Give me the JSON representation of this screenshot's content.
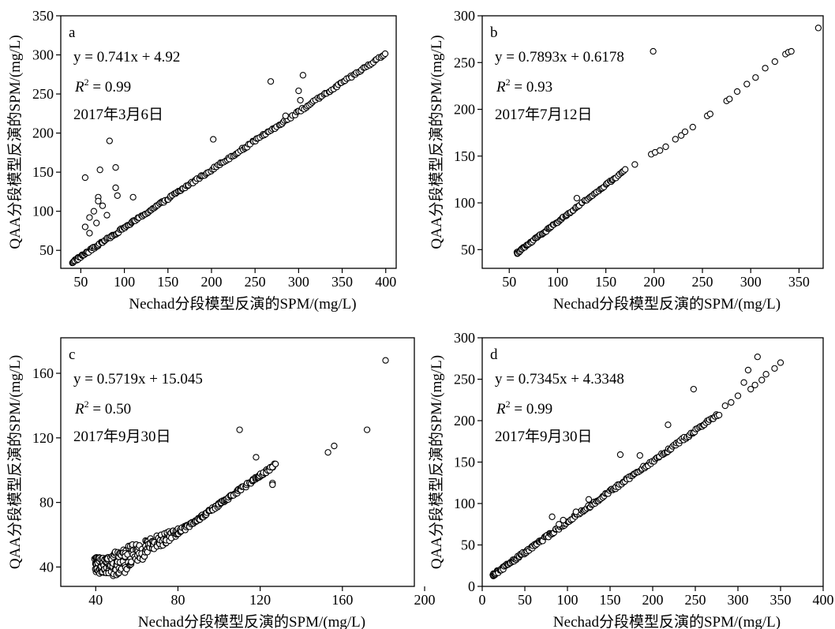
{
  "chart_data": [
    {
      "type": "scatter",
      "panel_label": "a",
      "equation": "y = 0.741x + 4.92",
      "r2": "0.99",
      "date": "2017年3月6日",
      "xlabel": "Nechad分段模型反演的SPM/(mg/L)",
      "ylabel": "QAA分段模型反演的SPM/(mg/L)",
      "xlim": [
        27,
        412
      ],
      "ylim": [
        27,
        350
      ],
      "xticks": [
        50,
        100,
        150,
        200,
        250,
        300,
        350,
        400
      ],
      "yticks": [
        50,
        100,
        150,
        200,
        250,
        300,
        350
      ],
      "fit": {
        "slope": 0.741,
        "intercept": 4.92
      },
      "dense_points": {
        "x_start": 40,
        "x_end": 400,
        "count": 230,
        "spread": 1.5
      },
      "outliers": [
        {
          "x": 55,
          "y": 143
        },
        {
          "x": 72,
          "y": 153
        },
        {
          "x": 83,
          "y": 190
        },
        {
          "x": 90,
          "y": 156
        },
        {
          "x": 90,
          "y": 130
        },
        {
          "x": 92,
          "y": 120
        },
        {
          "x": 70,
          "y": 118
        },
        {
          "x": 70,
          "y": 113
        },
        {
          "x": 75,
          "y": 107
        },
        {
          "x": 65,
          "y": 100
        },
        {
          "x": 60,
          "y": 92
        },
        {
          "x": 80,
          "y": 95
        },
        {
          "x": 110,
          "y": 118
        },
        {
          "x": 55,
          "y": 80
        },
        {
          "x": 60,
          "y": 72
        },
        {
          "x": 68,
          "y": 85
        },
        {
          "x": 202,
          "y": 192
        },
        {
          "x": 268,
          "y": 266
        },
        {
          "x": 305,
          "y": 274
        },
        {
          "x": 300,
          "y": 254
        },
        {
          "x": 302,
          "y": 242
        },
        {
          "x": 285,
          "y": 222
        }
      ]
    },
    {
      "type": "scatter",
      "panel_label": "b",
      "equation": "y = 0.7893x + 0.6178",
      "r2": "0.93",
      "date": "2017年7月12日",
      "xlabel": "Nechad分段模型反演的SPM/(mg/L)",
      "ylabel": "QAA分段模型反演的SPM/(mg/L)",
      "xlim": [
        22,
        375
      ],
      "ylim": [
        30,
        300
      ],
      "xticks": [
        50,
        100,
        150,
        200,
        250,
        300,
        350
      ],
      "yticks": [
        50,
        100,
        150,
        200,
        250,
        300
      ],
      "fit": {
        "slope": 0.7893,
        "intercept": 0.6178
      },
      "dense_points": {
        "x_start": 58,
        "x_end": 170,
        "count": 95,
        "spread": 1.0
      },
      "outliers": [
        {
          "x": 120,
          "y": 105
        },
        {
          "x": 199,
          "y": 262
        },
        {
          "x": 370,
          "y": 287
        },
        {
          "x": 180,
          "y": 141
        },
        {
          "x": 197,
          "y": 152
        },
        {
          "x": 201,
          "y": 154
        },
        {
          "x": 206,
          "y": 156
        },
        {
          "x": 212,
          "y": 160
        },
        {
          "x": 222,
          "y": 168
        },
        {
          "x": 228,
          "y": 172
        },
        {
          "x": 232,
          "y": 176
        },
        {
          "x": 240,
          "y": 181
        },
        {
          "x": 255,
          "y": 193
        },
        {
          "x": 258,
          "y": 195
        },
        {
          "x": 275,
          "y": 209
        },
        {
          "x": 278,
          "y": 211
        },
        {
          "x": 286,
          "y": 219
        },
        {
          "x": 296,
          "y": 227
        },
        {
          "x": 305,
          "y": 234
        },
        {
          "x": 315,
          "y": 244
        },
        {
          "x": 325,
          "y": 251
        },
        {
          "x": 336,
          "y": 259
        },
        {
          "x": 339,
          "y": 261
        },
        {
          "x": 342,
          "y": 262
        }
      ]
    },
    {
      "type": "scatter",
      "panel_label": "c",
      "equation": "y = 0.5719x + 15.045",
      "r2": "0.50",
      "date": "2017年9月30日",
      "xlabel": "Nechad分段模型反演的SPM/(mg/L)",
      "ylabel": "QAA分段模型反演的SPM/(mg/L)",
      "xlim": [
        23,
        195
      ],
      "ylim": [
        28,
        182
      ],
      "xticks": [
        40,
        80,
        120,
        160,
        200
      ],
      "yticks": [
        40,
        80,
        120,
        160
      ],
      "fit": {
        "slope": 0.5719,
        "intercept": 15.045
      },
      "dense_points": {
        "x_start": 40,
        "x_end": 127,
        "count": 380,
        "spread": 10
      },
      "outliers": [
        {
          "x": 110,
          "y": 125
        },
        {
          "x": 118,
          "y": 108
        },
        {
          "x": 153,
          "y": 111
        },
        {
          "x": 156,
          "y": 115
        },
        {
          "x": 172,
          "y": 125
        },
        {
          "x": 181,
          "y": 168
        },
        {
          "x": 126,
          "y": 92
        },
        {
          "x": 126,
          "y": 91
        }
      ]
    },
    {
      "type": "scatter",
      "panel_label": "d",
      "equation": "y = 0.7345x + 4.3348",
      "r2": "0.99",
      "date": "2017年9月30日",
      "xlabel": "Nechad分段模型反演的SPM/(mg/L)",
      "ylabel": "QAA分段模型反演的SPM/(mg/L)",
      "xlim": [
        0,
        400
      ],
      "ylim": [
        0,
        300
      ],
      "xticks": [
        0,
        50,
        100,
        150,
        200,
        250,
        300,
        350,
        400
      ],
      "yticks": [
        0,
        50,
        100,
        150,
        200,
        250,
        300
      ],
      "fit": {
        "slope": 0.7345,
        "intercept": 4.3348
      },
      "dense_points": {
        "x_start": 12,
        "x_end": 278,
        "count": 210,
        "spread": 1.8
      },
      "outliers": [
        {
          "x": 82,
          "y": 84
        },
        {
          "x": 162,
          "y": 159
        },
        {
          "x": 218,
          "y": 195
        },
        {
          "x": 248,
          "y": 238
        },
        {
          "x": 307,
          "y": 246
        },
        {
          "x": 312,
          "y": 261
        },
        {
          "x": 323,
          "y": 277
        },
        {
          "x": 350,
          "y": 270
        },
        {
          "x": 343,
          "y": 263
        },
        {
          "x": 285,
          "y": 218
        },
        {
          "x": 292,
          "y": 222
        },
        {
          "x": 300,
          "y": 230
        },
        {
          "x": 315,
          "y": 238
        },
        {
          "x": 320,
          "y": 243
        },
        {
          "x": 328,
          "y": 249
        },
        {
          "x": 333,
          "y": 256
        },
        {
          "x": 95,
          "y": 80
        },
        {
          "x": 90,
          "y": 75
        },
        {
          "x": 125,
          "y": 105
        },
        {
          "x": 185,
          "y": 158
        },
        {
          "x": 110,
          "y": 90
        }
      ]
    }
  ]
}
